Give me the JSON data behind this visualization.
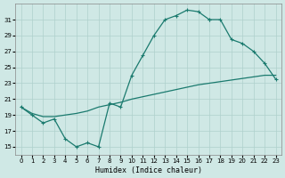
{
  "xlabel": "Humidex (Indice chaleur)",
  "bg_color": "#cfe8e5",
  "grid_color": "#aed0cc",
  "line_color": "#1a7a6e",
  "xlim": [
    -0.5,
    23.5
  ],
  "ylim": [
    14,
    33
  ],
  "yticks": [
    15,
    17,
    19,
    21,
    23,
    25,
    27,
    29,
    31
  ],
  "xticks": [
    0,
    1,
    2,
    3,
    4,
    5,
    6,
    7,
    8,
    9,
    10,
    11,
    12,
    13,
    14,
    15,
    16,
    17,
    18,
    19,
    20,
    21,
    22,
    23
  ],
  "curve1_x": [
    0,
    1,
    2,
    3,
    4,
    5,
    6,
    7,
    8,
    9,
    10,
    11,
    12,
    13,
    14,
    15,
    16,
    17
  ],
  "curve1_y": [
    20.0,
    19.0,
    18.0,
    18.5,
    16.0,
    15.0,
    15.5,
    15.0,
    20.5,
    20.0,
    24.0,
    26.5,
    29.0,
    31.0,
    31.5,
    32.2,
    32.0,
    31.0
  ],
  "curve2_x": [
    17,
    18,
    19,
    20,
    21,
    22,
    23
  ],
  "curve2_y": [
    31.0,
    31.0,
    28.5,
    28.0,
    27.0,
    25.5,
    23.5
  ],
  "diag_x": [
    0,
    1,
    2,
    3,
    4,
    5,
    6,
    7,
    8,
    9,
    10,
    11,
    12,
    13,
    14,
    15,
    16,
    17,
    18,
    19,
    20,
    21,
    22,
    23
  ],
  "diag_y": [
    20.0,
    19.2,
    18.8,
    18.8,
    19.0,
    19.2,
    19.5,
    20.0,
    20.3,
    20.6,
    21.0,
    21.3,
    21.6,
    21.9,
    22.2,
    22.5,
    22.8,
    23.0,
    23.2,
    23.4,
    23.6,
    23.8,
    24.0,
    24.0
  ]
}
